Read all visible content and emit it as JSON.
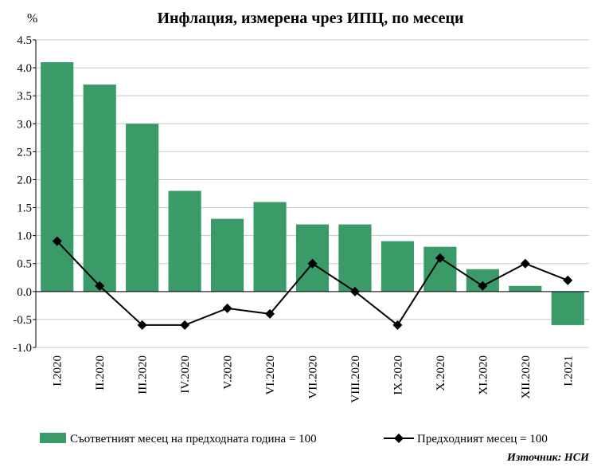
{
  "chart_data": {
    "type": "bar",
    "title": "Инфлация, измерена чрез ИПЦ, по месеци",
    "unit_label": "%",
    "categories": [
      "I.2020",
      "II.2020",
      "III.2020",
      "IV.2020",
      "V.2020",
      "VI.2020",
      "VII.2020",
      "VIII.2020",
      "IX.2020",
      "X.2020",
      "XI.2020",
      "XII.2020",
      "I.2021"
    ],
    "series": [
      {
        "name": "Съответният месец на предходната година = 100",
        "type": "bar",
        "color": "#3a9b68",
        "values": [
          4.1,
          3.7,
          3.0,
          1.8,
          1.3,
          1.6,
          1.2,
          1.2,
          0.9,
          0.8,
          0.4,
          0.1,
          -0.6
        ]
      },
      {
        "name": "Предходният месец = 100",
        "type": "line",
        "color": "#000000",
        "marker": "diamond",
        "values": [
          0.9,
          0.1,
          -0.6,
          -0.6,
          -0.3,
          -0.4,
          0.5,
          0.0,
          -0.6,
          0.6,
          0.1,
          0.5,
          0.2
        ]
      }
    ],
    "ylim": [
      -1.0,
      4.5
    ],
    "yticks": [
      "4.5",
      "4.0",
      "3.5",
      "3.0",
      "2.5",
      "2.0",
      "1.5",
      "1.0",
      "0.5",
      "0.0",
      "-0.5",
      "-1.0"
    ],
    "grid": true,
    "legend_position": "bottom",
    "source": "Източник: НСИ"
  }
}
